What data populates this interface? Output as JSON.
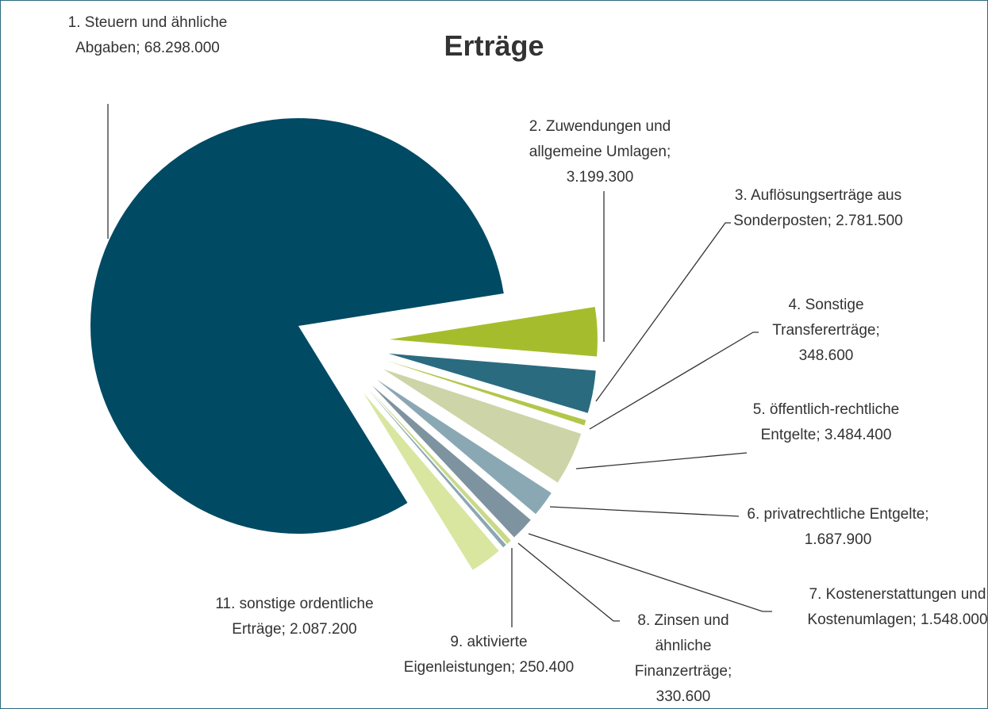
{
  "chart_data": {
    "type": "pie",
    "title": "Erträge",
    "categories": [
      "1. Steuern und ähnliche Abgaben;",
      "2. Zuwendungen und allgemeine Umlagen;",
      "3. Auflösungserträge aus Sonderposten;",
      "4. Sonstige Transfererträge;",
      "5. öffentlich-rechtliche Entgelte;",
      "6. privatrechtliche Entgelte;",
      "7. Kostenerstattungen und Kostenumlagen;",
      "8. Zinsen und ähnliche Finanzerträge;",
      "9. aktivierte Eigenleistungen;",
      "11. sonstige ordentliche Erträge;"
    ],
    "values": [
      68298000,
      3199300,
      2781500,
      348600,
      3484400,
      1687900,
      1548000,
      330600,
      250400,
      2087200
    ],
    "value_labels": [
      "68.298.000",
      "3.199.300",
      "2.781.500",
      "348.600",
      "3.484.400",
      "1.687.900",
      "1.548.000",
      "330.600",
      "250.400",
      "2.087.200"
    ],
    "colors": [
      "#004a63",
      "#a5bd2c",
      "#2a6b80",
      "#b3c64a",
      "#cdd5a8",
      "#8aa8b3",
      "#7e93a0",
      "#c9d98a",
      "#8aa8b3",
      "#d8e6a0"
    ]
  }
}
